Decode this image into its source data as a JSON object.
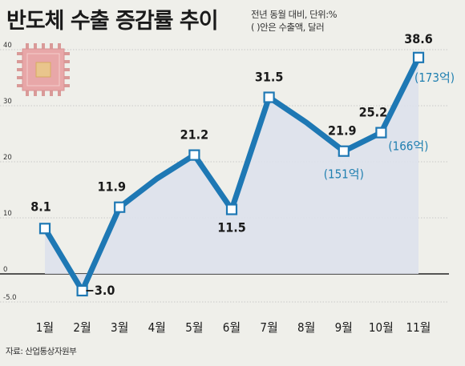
{
  "header": {
    "title": "반도체 수출 증감률 추이",
    "unit_line1": "전년 동월 대비, 단위:%",
    "unit_line2": "( )안은 수출액, 달러"
  },
  "source": "자료: 산업통상자원부",
  "colors": {
    "line": "#1e78b4",
    "area": "#dde1ec",
    "background": "#efefea"
  },
  "icon": "microchip-icon",
  "chart_data": {
    "type": "line",
    "title": "반도체 수출 증감률 추이",
    "xlabel": "",
    "ylabel": "",
    "categories": [
      "1월",
      "2월",
      "3월",
      "4월",
      "5월",
      "6월",
      "7월",
      "8월",
      "9월",
      "10월",
      "11월"
    ],
    "series": [
      {
        "values": [
          8.1,
          -3.0,
          11.9,
          17.0,
          21.2,
          11.5,
          31.5,
          27.0,
          21.9,
          25.2,
          38.6
        ]
      }
    ],
    "yticks": [
      "40",
      "30",
      "20",
      "10",
      "0",
      "-5.0"
    ],
    "ylim": [
      -5,
      40
    ],
    "data_labels": [
      {
        "index": 0,
        "text": "8.1"
      },
      {
        "index": 1,
        "text": "−3.0"
      },
      {
        "index": 2,
        "text": "11.9"
      },
      {
        "index": 4,
        "text": "21.2"
      },
      {
        "index": 5,
        "text": "11.5"
      },
      {
        "index": 6,
        "text": "31.5"
      },
      {
        "index": 8,
        "text": "21.9"
      },
      {
        "index": 9,
        "text": "25.2"
      },
      {
        "index": 10,
        "text": "38.6"
      }
    ],
    "annotations": [
      {
        "index": 8,
        "text": "(151억)"
      },
      {
        "index": 9,
        "text": "(166억)"
      },
      {
        "index": 10,
        "text": "(173억)"
      }
    ],
    "markers": [
      0,
      1,
      2,
      4,
      5,
      6,
      8,
      9,
      10
    ],
    "grid": true
  }
}
